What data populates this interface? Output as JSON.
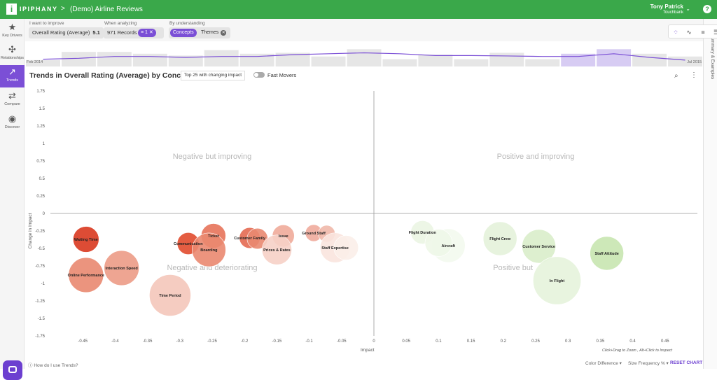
{
  "app": {
    "brand": "IPIPHANY",
    "brand_mark": "i",
    "breadcrumb_sep": ">",
    "project": "(Demo) Airline Reviews",
    "user": {
      "name": "Tony Patrick",
      "org": "Touchbank"
    },
    "help_glyph": "?"
  },
  "nav": [
    {
      "label": "Key Drivers",
      "icon": "star-icon",
      "glyph": "★"
    },
    {
      "label": "Relationships",
      "icon": "network-icon",
      "glyph": "✣"
    },
    {
      "label": "Trends",
      "icon": "trend-icon",
      "glyph": "↗"
    },
    {
      "label": "Compare",
      "icon": "swap-icon",
      "glyph": "⇄"
    },
    {
      "label": "Discover",
      "icon": "compass-icon",
      "glyph": "◉"
    }
  ],
  "filters": {
    "improve_label": "I want to improve",
    "improve_metric": "Overall Rating (Average)",
    "improve_value": "5.1",
    "analyzing_label": "When analyzing",
    "records": "971 Records",
    "filter_count": "1",
    "understanding_label": "By understanding",
    "concepts": "Concepts",
    "themes": "Themes"
  },
  "timeline": {
    "start_label": "Feb 2014",
    "end_label": "Jul 2015",
    "bars": [
      0.35,
      0.8,
      0.8,
      0.7,
      0.6,
      0.9,
      0.7,
      0.75,
      0.55,
      0.95,
      0.4,
      0.65,
      0.4,
      0.75,
      0.4,
      0.7,
      0.95,
      0.7,
      0.55
    ],
    "selected": [
      15,
      16
    ],
    "line": [
      0.4,
      0.45,
      0.55,
      0.55,
      0.5,
      0.55,
      0.55,
      0.65,
      0.7,
      0.75,
      0.7,
      0.6,
      0.6,
      0.58,
      0.55,
      0.55,
      0.7,
      0.5,
      0.35
    ]
  },
  "chart_header": {
    "title": "Trends in Overall Rating (Average) by Concept",
    "top_button": "Top 25 with changing impact",
    "toggle_label": "Fast Movers"
  },
  "chart_data": {
    "type": "scatter",
    "xlabel": "Impact",
    "ylabel": "Change in Impact",
    "xlim": [
      -0.5,
      0.5
    ],
    "ylim": [
      -1.75,
      1.75
    ],
    "xticks": [
      "-0.45",
      "-0.4",
      "-0.35",
      "-0.3",
      "-0.25",
      "-0.2",
      "-0.15",
      "-0.1",
      "-0.05",
      "0",
      "0.05",
      "0.1",
      "0.15",
      "0.2",
      "0.25",
      "0.3",
      "0.35",
      "0.4",
      "0.45"
    ],
    "yticks": [
      "1.75",
      "1.5",
      "1.25",
      "1",
      "0.75",
      "0.5",
      "0.25",
      "0",
      "-0.25",
      "-0.5",
      "-0.75",
      "-1",
      "-1.25",
      "-1.5",
      "-1.75"
    ],
    "quadrants": {
      "top_left": "Negative but improving",
      "top_right": "Positive and improving",
      "bottom_left": "Negative and deteriorating",
      "bottom_right": "Positive but"
    },
    "points": [
      {
        "label": "Waiting Time",
        "x": -0.445,
        "y": -0.37,
        "r": 0.2,
        "color": "#d9391f"
      },
      {
        "label": "Online Performance",
        "x": -0.445,
        "y": -0.88,
        "r": 0.27,
        "color": "#e98870"
      },
      {
        "label": "Interaction Speed",
        "x": -0.39,
        "y": -0.78,
        "r": 0.27,
        "color": "#ec9b86"
      },
      {
        "label": "Time Period",
        "x": -0.315,
        "y": -1.17,
        "r": 0.32,
        "color": "#f4c6ba"
      },
      {
        "label": "Communication",
        "x": -0.287,
        "y": -0.43,
        "r": 0.17,
        "color": "#e14b2d"
      },
      {
        "label": "Ticket",
        "x": -0.248,
        "y": -0.32,
        "r": 0.19,
        "color": "#e7735a"
      },
      {
        "label": "Boarding",
        "x": -0.255,
        "y": -0.52,
        "r": 0.26,
        "color": "#ea8870"
      },
      {
        "label": "Customer Family",
        "x": -0.192,
        "y": -0.35,
        "r": 0.16,
        "color": "#e46a52"
      },
      {
        "label": "Customer Family",
        "x": -0.18,
        "y": -0.36,
        "r": 0.16,
        "color": "#e98870"
      },
      {
        "label": "Issue",
        "x": -0.14,
        "y": -0.32,
        "r": 0.17,
        "color": "#f0ab9a"
      },
      {
        "label": "Prices & Rates",
        "x": -0.15,
        "y": -0.52,
        "r": 0.23,
        "color": "#f6d0c6"
      },
      {
        "label": "Ground Staff",
        "x": -0.093,
        "y": -0.28,
        "r": 0.13,
        "color": "#efab9c"
      },
      {
        "label": "Ground Staff",
        "x": -0.073,
        "y": -0.29,
        "r": 0.13,
        "color": "#f0b8aa"
      },
      {
        "label": "Staff Expertise",
        "x": -0.06,
        "y": -0.49,
        "r": 0.23,
        "color": "#fae4de"
      },
      {
        "label": "Staff Expertise",
        "x": -0.043,
        "y": -0.49,
        "r": 0.19,
        "color": "#fbeee9"
      },
      {
        "label": "Flight Duration",
        "x": 0.075,
        "y": -0.27,
        "r": 0.18,
        "color": "#ebf5e3"
      },
      {
        "label": "Aircraft",
        "x": 0.115,
        "y": -0.46,
        "r": 0.26,
        "color": "#f3f9ee"
      },
      {
        "label": "Aircraft",
        "x": 0.1,
        "y": -0.42,
        "r": 0.21,
        "color": "#eef7e8"
      },
      {
        "label": "Flight Crew",
        "x": 0.195,
        "y": -0.36,
        "r": 0.26,
        "color": "#e4f2da"
      },
      {
        "label": "Customer Service",
        "x": 0.255,
        "y": -0.47,
        "r": 0.26,
        "color": "#d9edca"
      },
      {
        "label": "Staff Attitude",
        "x": 0.36,
        "y": -0.57,
        "r": 0.26,
        "color": "#c8e6b0"
      },
      {
        "label": "In Flight",
        "x": 0.283,
        "y": -0.96,
        "r": 0.37,
        "color": "#e6f3dc"
      }
    ]
  },
  "footer": {
    "hint": "Click+Drag to Zoom , Alt+Click to Inspect",
    "help": "How do I use Trends?",
    "color_label": "Color Difference ▾",
    "size_label": "Size Frequency % ▾",
    "reset": "RESET CHART"
  },
  "right_panel": {
    "label": "Summary & Examples",
    "chevron": "<"
  },
  "colors": {
    "brand_green": "#3aa84a",
    "accent_purple": "#7b4fd6"
  }
}
